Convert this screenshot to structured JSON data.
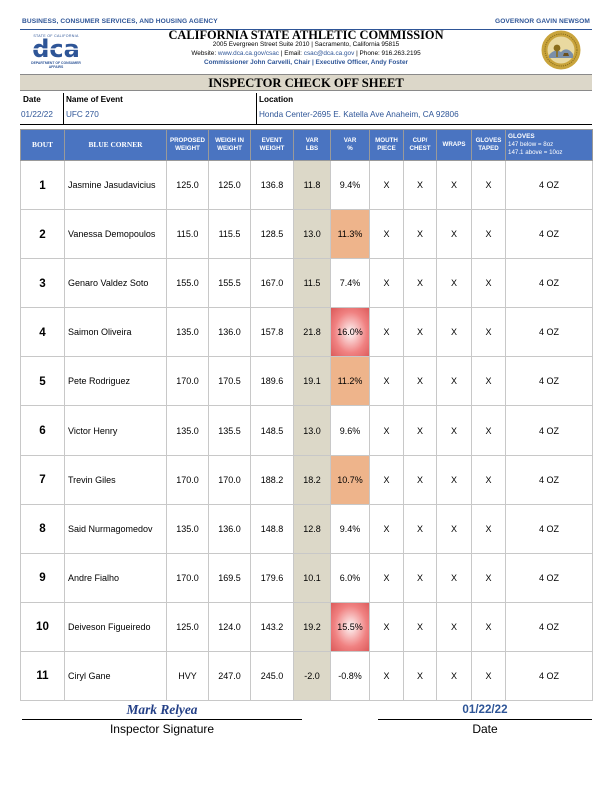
{
  "header": {
    "agency": "BUSINESS, CONSUMER SERVICES, AND HOUSING AGENCY",
    "governor": "GOVERNOR GAVIN NEWSOM",
    "org_name": "CALIFORNIA STATE ATHLETIC COMMISSION",
    "address": "2005 Evergreen Street Suite 2010 | Sacramento, California 95815",
    "website_label": "Website:",
    "website": "www.dca.ca.gov/csac",
    "email_label": "| Email:",
    "email": "csac@dca.ca.gov",
    "phone": "| Phone: 916.263.2195",
    "commissioners": "Commissioner John Carvelli, Chair | Executive Officer, Andy Foster"
  },
  "logo": {
    "state_text": "STATE OF CALIFORNIA",
    "letters": "dca",
    "dept_text": "DEPARTMENT OF CONSUMER AFFAIRS"
  },
  "title": "INSPECTOR CHECK OFF SHEET",
  "event_info": {
    "date_label": "Date",
    "date": "01/22/22",
    "event_label": "Name of Event",
    "event": "UFC 270",
    "location_label": "Location",
    "location": "Honda Center-2695 E. Katella Ave Anaheim, CA  92806"
  },
  "columns": {
    "bout": "BOUT",
    "corner": "BLUE CORNER",
    "proposed": [
      "PROPOSED",
      "WEIGHT"
    ],
    "weigh_in": [
      "WEIGH IN",
      "WEIGHT"
    ],
    "event_weight": [
      "EVENT",
      "WEIGHT"
    ],
    "var_lbs": [
      "VAR",
      "LBS"
    ],
    "var_pct": [
      "VAR",
      "%"
    ],
    "mouthpiece": [
      "MOUTH",
      "PIECE"
    ],
    "cup_chest": [
      "CUP/",
      "CHEST"
    ],
    "wraps": "WRAPS",
    "gloves_taped": [
      "GLOVES",
      "TAPED"
    ],
    "gloves": "GLOVES",
    "gloves_note1": "147 below = 8oz",
    "gloves_note2": "147.1 above = 10oz"
  },
  "bouts": [
    {
      "bout": "1",
      "name": "Jasmine Jasudavicius",
      "proposed": "125.0",
      "weigh_in": "125.0",
      "event_weight": "136.8",
      "var_lbs": "11.8",
      "var_pct": "9.4%",
      "pct_level": "none",
      "mouthpiece": "X",
      "cup_chest": "X",
      "wraps": "X",
      "gloves_taped": "X",
      "gloves": "4 OZ"
    },
    {
      "bout": "2",
      "name": "Vanessa Demopoulos",
      "proposed": "115.0",
      "weigh_in": "115.5",
      "event_weight": "128.5",
      "var_lbs": "13.0",
      "var_pct": "11.3%",
      "pct_level": "orange",
      "mouthpiece": "X",
      "cup_chest": "X",
      "wraps": "X",
      "gloves_taped": "X",
      "gloves": "4 OZ"
    },
    {
      "bout": "3",
      "name": "Genaro Valdez Soto",
      "proposed": "155.0",
      "weigh_in": "155.5",
      "event_weight": "167.0",
      "var_lbs": "11.5",
      "var_pct": "7.4%",
      "pct_level": "none",
      "mouthpiece": "X",
      "cup_chest": "X",
      "wraps": "X",
      "gloves_taped": "X",
      "gloves": "4 OZ"
    },
    {
      "bout": "4",
      "name": "Saimon Oliveira",
      "proposed": "135.0",
      "weigh_in": "136.0",
      "event_weight": "157.8",
      "var_lbs": "21.8",
      "var_pct": "16.0%",
      "pct_level": "red",
      "mouthpiece": "X",
      "cup_chest": "X",
      "wraps": "X",
      "gloves_taped": "X",
      "gloves": "4 OZ"
    },
    {
      "bout": "5",
      "name": "Pete Rodriguez",
      "proposed": "170.0",
      "weigh_in": "170.5",
      "event_weight": "189.6",
      "var_lbs": "19.1",
      "var_pct": "11.2%",
      "pct_level": "orange",
      "mouthpiece": "X",
      "cup_chest": "X",
      "wraps": "X",
      "gloves_taped": "X",
      "gloves": "4 OZ"
    },
    {
      "bout": "6",
      "name": "Victor Henry",
      "proposed": "135.0",
      "weigh_in": "135.5",
      "event_weight": "148.5",
      "var_lbs": "13.0",
      "var_pct": "9.6%",
      "pct_level": "none",
      "mouthpiece": "X",
      "cup_chest": "X",
      "wraps": "X",
      "gloves_taped": "X",
      "gloves": "4 OZ"
    },
    {
      "bout": "7",
      "name": "Trevin Giles",
      "proposed": "170.0",
      "weigh_in": "170.0",
      "event_weight": "188.2",
      "var_lbs": "18.2",
      "var_pct": "10.7%",
      "pct_level": "orange",
      "mouthpiece": "X",
      "cup_chest": "X",
      "wraps": "X",
      "gloves_taped": "X",
      "gloves": "4 OZ"
    },
    {
      "bout": "8",
      "name": "Said Nurmagomedov",
      "proposed": "135.0",
      "weigh_in": "136.0",
      "event_weight": "148.8",
      "var_lbs": "12.8",
      "var_pct": "9.4%",
      "pct_level": "none",
      "mouthpiece": "X",
      "cup_chest": "X",
      "wraps": "X",
      "gloves_taped": "X",
      "gloves": "4 OZ"
    },
    {
      "bout": "9",
      "name": "Andre Fialho",
      "proposed": "170.0",
      "weigh_in": "169.5",
      "event_weight": "179.6",
      "var_lbs": "10.1",
      "var_pct": "6.0%",
      "pct_level": "none",
      "mouthpiece": "X",
      "cup_chest": "X",
      "wraps": "X",
      "gloves_taped": "X",
      "gloves": "4 OZ"
    },
    {
      "bout": "10",
      "name": "Deiveson Figueiredo",
      "proposed": "125.0",
      "weigh_in": "124.0",
      "event_weight": "143.2",
      "var_lbs": "19.2",
      "var_pct": "15.5%",
      "pct_level": "red",
      "mouthpiece": "X",
      "cup_chest": "X",
      "wraps": "X",
      "gloves_taped": "X",
      "gloves": "4 OZ"
    },
    {
      "bout": "11",
      "name": "Ciryl Gane",
      "proposed": "HVY",
      "weigh_in": "247.0",
      "event_weight": "245.0",
      "var_lbs": "-2.0",
      "var_pct": "-0.8%",
      "pct_level": "none",
      "mouthpiece": "X",
      "cup_chest": "X",
      "wraps": "X",
      "gloves_taped": "X",
      "gloves": "4 OZ"
    }
  ],
  "footer": {
    "inspector_name": "Mark Relyea",
    "inspector_label": "Inspector Signature",
    "date": "01/22/22",
    "date_label": "Date"
  },
  "colors": {
    "brand_blue": "#2e5597",
    "header_blue": "#4a74c1",
    "var_bg": "#dcd8c8",
    "warn_orange": "#eeb48b",
    "alert_red": "#e06666"
  }
}
